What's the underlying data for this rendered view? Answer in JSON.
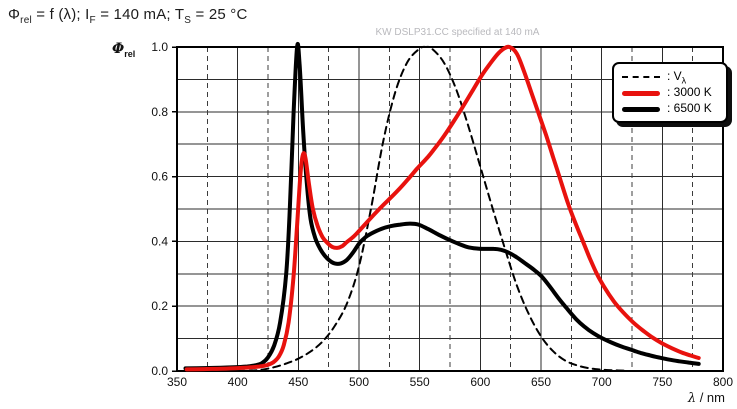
{
  "title": {
    "p0": "Φ",
    "s0": "rel",
    "p1": " = f (λ); I",
    "s1": "F",
    "p2": " = 140 mA; T",
    "s2": "S",
    "p3": " = 25 °C"
  },
  "watermark": "KW DSLP31.CC specified at 140 mA",
  "y_axis": {
    "symbol": "Φ",
    "symbol_sub": "rel",
    "ticks": [
      0.0,
      0.2,
      0.4,
      0.6,
      0.8,
      1.0
    ],
    "minor_step": 0.1
  },
  "x_axis": {
    "symbol": "λ",
    "unit": " / nm",
    "ticks": [
      350,
      400,
      450,
      500,
      550,
      600,
      650,
      700,
      750,
      800
    ],
    "minor_step": 25
  },
  "legend": {
    "items": [
      {
        "label": ": V",
        "sub": "λ"
      },
      {
        "label": ": 3000 K",
        "sub": ""
      },
      {
        "label": ": 6500 K",
        "sub": ""
      }
    ]
  },
  "colors": {
    "red": "#e8120e",
    "black": "#000000",
    "grid": "#2b2b2b",
    "grid_dash": "#3c3c3c",
    "border": "#000000",
    "watermark": "#b9b9bd"
  },
  "chart_data": {
    "type": "line",
    "title": "Φrel = f (λ); IF = 140 mA; TS = 25 °C",
    "subtitle": "KW DSLP31.CC specified at 140 mA",
    "xlabel": "λ / nm",
    "ylabel": "Φrel",
    "xlim": [
      350,
      800
    ],
    "ylim": [
      0,
      1
    ],
    "grid": {
      "h_step": 0.1,
      "v_solid_step": 50,
      "v_dashed_step": 25
    },
    "legend_position": "top-right",
    "series": [
      {
        "name": "Vλ",
        "key": "v-lambda",
        "color": "#000000",
        "width": 2,
        "dash": "7 5",
        "points": [
          [
            390,
            0.0001
          ],
          [
            400,
            0.0004
          ],
          [
            410,
            0.0012
          ],
          [
            420,
            0.004
          ],
          [
            430,
            0.0116
          ],
          [
            440,
            0.023
          ],
          [
            450,
            0.038
          ],
          [
            460,
            0.06
          ],
          [
            470,
            0.091
          ],
          [
            480,
            0.139
          ],
          [
            490,
            0.208
          ],
          [
            500,
            0.323
          ],
          [
            510,
            0.503
          ],
          [
            520,
            0.71
          ],
          [
            530,
            0.862
          ],
          [
            540,
            0.954
          ],
          [
            550,
            0.995
          ],
          [
            555,
            1.0
          ],
          [
            560,
            0.995
          ],
          [
            570,
            0.952
          ],
          [
            580,
            0.87
          ],
          [
            590,
            0.757
          ],
          [
            600,
            0.631
          ],
          [
            610,
            0.503
          ],
          [
            620,
            0.381
          ],
          [
            630,
            0.265
          ],
          [
            640,
            0.175
          ],
          [
            650,
            0.107
          ],
          [
            660,
            0.061
          ],
          [
            670,
            0.032
          ],
          [
            680,
            0.017
          ],
          [
            690,
            0.0082
          ],
          [
            700,
            0.0041
          ],
          [
            710,
            0.0021
          ],
          [
            720,
            0.001
          ]
        ]
      },
      {
        "name": "6500 K",
        "key": "6500k",
        "color": "#000000",
        "width": 4,
        "dash": null,
        "points": [
          [
            357,
            0.008
          ],
          [
            372,
            0.009
          ],
          [
            386,
            0.01
          ],
          [
            400,
            0.012
          ],
          [
            408,
            0.014
          ],
          [
            415,
            0.018
          ],
          [
            420,
            0.024
          ],
          [
            425,
            0.042
          ],
          [
            430,
            0.078
          ],
          [
            435,
            0.15
          ],
          [
            440,
            0.3
          ],
          [
            443,
            0.5
          ],
          [
            446,
            0.79
          ],
          [
            449,
            1.0
          ],
          [
            451,
            0.95
          ],
          [
            454,
            0.74
          ],
          [
            457,
            0.58
          ],
          [
            460,
            0.47
          ],
          [
            464,
            0.41
          ],
          [
            468,
            0.377
          ],
          [
            472,
            0.355
          ],
          [
            476,
            0.34
          ],
          [
            480,
            0.332
          ],
          [
            485,
            0.332
          ],
          [
            490,
            0.343
          ],
          [
            495,
            0.365
          ],
          [
            500,
            0.393
          ],
          [
            505,
            0.412
          ],
          [
            510,
            0.424
          ],
          [
            518,
            0.438
          ],
          [
            526,
            0.447
          ],
          [
            534,
            0.452
          ],
          [
            542,
            0.455
          ],
          [
            549,
            0.452
          ],
          [
            557,
            0.438
          ],
          [
            565,
            0.422
          ],
          [
            573,
            0.407
          ],
          [
            581,
            0.394
          ],
          [
            589,
            0.383
          ],
          [
            597,
            0.378
          ],
          [
            604,
            0.377
          ],
          [
            611,
            0.377
          ],
          [
            617,
            0.374
          ],
          [
            623,
            0.366
          ],
          [
            630,
            0.351
          ],
          [
            637,
            0.332
          ],
          [
            644,
            0.313
          ],
          [
            651,
            0.29
          ],
          [
            658,
            0.257
          ],
          [
            665,
            0.222
          ],
          [
            672,
            0.19
          ],
          [
            679,
            0.16
          ],
          [
            686,
            0.136
          ],
          [
            693,
            0.117
          ],
          [
            700,
            0.102
          ],
          [
            708,
            0.088
          ],
          [
            716,
            0.076
          ],
          [
            724,
            0.066
          ],
          [
            732,
            0.056
          ],
          [
            740,
            0.048
          ],
          [
            748,
            0.041
          ],
          [
            756,
            0.035
          ],
          [
            764,
            0.03
          ],
          [
            772,
            0.026
          ],
          [
            780,
            0.022
          ]
        ]
      },
      {
        "name": "3000 K",
        "key": "3000k",
        "color": "#e8120e",
        "width": 4,
        "dash": null,
        "points": [
          [
            358,
            0.005
          ],
          [
            372,
            0.006
          ],
          [
            386,
            0.007
          ],
          [
            400,
            0.009
          ],
          [
            410,
            0.011
          ],
          [
            418,
            0.014
          ],
          [
            424,
            0.018
          ],
          [
            429,
            0.026
          ],
          [
            434,
            0.045
          ],
          [
            438,
            0.08
          ],
          [
            442,
            0.15
          ],
          [
            446,
            0.29
          ],
          [
            449,
            0.45
          ],
          [
            452,
            0.62
          ],
          [
            454,
            0.67
          ],
          [
            456,
            0.655
          ],
          [
            459,
            0.57
          ],
          [
            462,
            0.5
          ],
          [
            466,
            0.447
          ],
          [
            470,
            0.413
          ],
          [
            474,
            0.395
          ],
          [
            478,
            0.383
          ],
          [
            482,
            0.38
          ],
          [
            486,
            0.385
          ],
          [
            490,
            0.398
          ],
          [
            495,
            0.413
          ],
          [
            500,
            0.432
          ],
          [
            508,
            0.465
          ],
          [
            516,
            0.497
          ],
          [
            524,
            0.527
          ],
          [
            532,
            0.557
          ],
          [
            540,
            0.59
          ],
          [
            548,
            0.625
          ],
          [
            556,
            0.657
          ],
          [
            562,
            0.685
          ],
          [
            570,
            0.725
          ],
          [
            578,
            0.77
          ],
          [
            586,
            0.818
          ],
          [
            594,
            0.868
          ],
          [
            602,
            0.917
          ],
          [
            608,
            0.948
          ],
          [
            614,
            0.977
          ],
          [
            619,
            0.994
          ],
          [
            624,
            1.0
          ],
          [
            630,
            0.98
          ],
          [
            636,
            0.925
          ],
          [
            642,
            0.86
          ],
          [
            648,
            0.795
          ],
          [
            654,
            0.73
          ],
          [
            660,
            0.66
          ],
          [
            666,
            0.59
          ],
          [
            672,
            0.52
          ],
          [
            678,
            0.46
          ],
          [
            684,
            0.405
          ],
          [
            690,
            0.35
          ],
          [
            696,
            0.3
          ],
          [
            702,
            0.26
          ],
          [
            710,
            0.215
          ],
          [
            718,
            0.18
          ],
          [
            726,
            0.15
          ],
          [
            734,
            0.125
          ],
          [
            742,
            0.103
          ],
          [
            750,
            0.085
          ],
          [
            758,
            0.07
          ],
          [
            766,
            0.057
          ],
          [
            773,
            0.048
          ],
          [
            780,
            0.04
          ]
        ]
      }
    ]
  }
}
